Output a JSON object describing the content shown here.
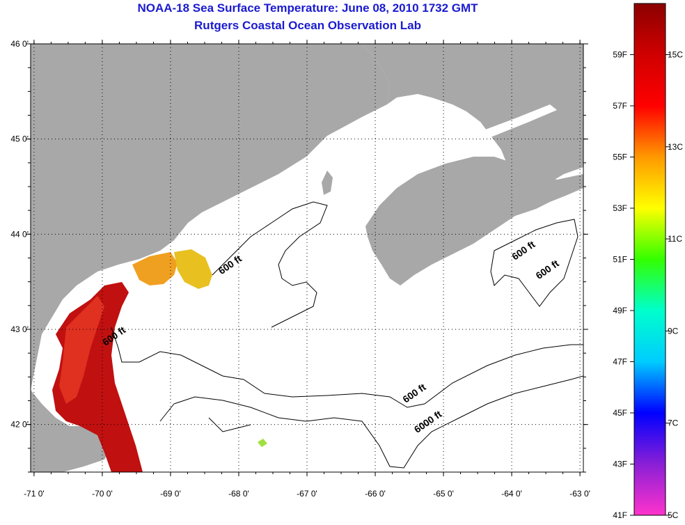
{
  "title": "NOAA-18 Sea Surface Temperature:  June 08, 2010 1732 GMT",
  "subtitle": "Rutgers Coastal Ocean Observation Lab",
  "colors": {
    "title": "#1a1ad0",
    "land": "#a8a8a8",
    "ocean": "#ffffff",
    "grid": "#000000"
  },
  "axes": {
    "lon_min": -71.05,
    "lon_max": -62.95,
    "lat_min": 41.5,
    "lat_max": 46.0,
    "x_tick_labels": [
      "-71 0'",
      "-70 0'",
      "-69 0'",
      "-68 0'",
      "-67 0'",
      "-66 0'",
      "-65 0'",
      "-64 0'",
      "-63 0'"
    ],
    "x_tick_values": [
      -71,
      -70,
      -69,
      -68,
      -67,
      -66,
      -65,
      -64,
      -63
    ],
    "y_tick_labels": [
      "46 0'",
      "45 0'",
      "44 0'",
      "43 0'",
      "42 0'"
    ],
    "y_tick_values": [
      46,
      45,
      44,
      43,
      42
    ],
    "grid": "dotted"
  },
  "contour_labels": [
    {
      "text": "600 ft",
      "lon": -68.1,
      "lat": 43.65
    },
    {
      "text": "600 ft",
      "lon": -69.8,
      "lat": 42.9
    },
    {
      "text": "600 ft",
      "lon": -63.8,
      "lat": 43.8
    },
    {
      "text": "600 ft",
      "lon": -63.45,
      "lat": 43.6
    },
    {
      "text": "600 ft",
      "lon": -65.4,
      "lat": 42.3
    },
    {
      "text": "6000 ft",
      "lon": -65.2,
      "lat": 42.0
    }
  ],
  "colorbar": {
    "fahrenheit_labels": [
      "59F",
      "57F",
      "55F",
      "53F",
      "51F",
      "49F",
      "47F",
      "45F",
      "43F",
      "41F"
    ],
    "fahrenheit_values": [
      59,
      57,
      55,
      53,
      51,
      49,
      47,
      45,
      43,
      41
    ],
    "celsius_labels": [
      "15C",
      "13C",
      "11C",
      "9C",
      "7C",
      "5C"
    ],
    "celsius_values": [
      15,
      13,
      11,
      9,
      7,
      5
    ],
    "min_f": 41,
    "max_f": 61,
    "stops": [
      "#ff33cc",
      "#8a1fd6",
      "#0000ff",
      "#00ccff",
      "#00ffcc",
      "#33ff00",
      "#ffff00",
      "#ff9900",
      "#ff0000",
      "#d00000",
      "#8b0000"
    ]
  }
}
